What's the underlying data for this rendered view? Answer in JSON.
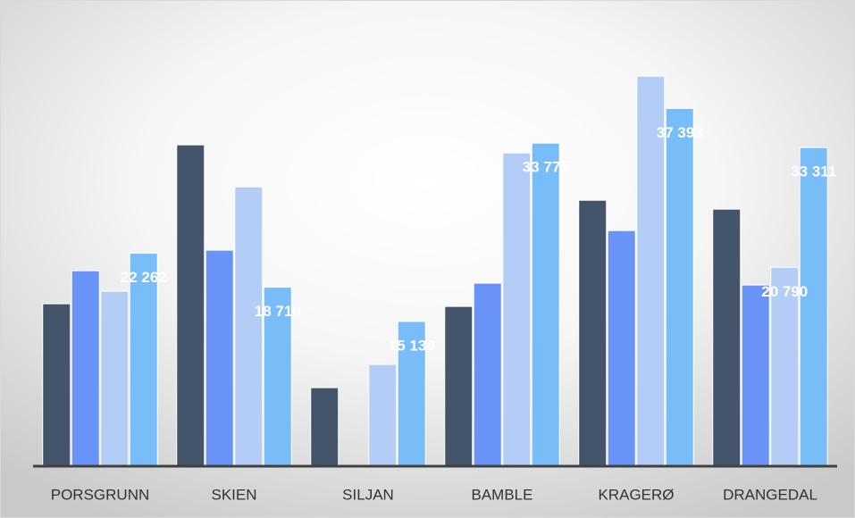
{
  "chart_data": {
    "type": "bar",
    "categories": [
      "PORSGRUNN",
      "SKIEN",
      "SILJAN",
      "BAMBLE",
      "KRAGERØ",
      "DRANGEDAL"
    ],
    "series": [
      {
        "color": "#44546a",
        "values": [
          16980,
          33590,
          8210,
          16700,
          27800,
          26870
        ],
        "value_labels": [
          null,
          null,
          null,
          null,
          null,
          null
        ]
      },
      {
        "color": "#6a93f8",
        "values": [
          20430,
          22580,
          0,
          19130,
          24630,
          18940
        ],
        "value_labels": [
          null,
          null,
          null,
          null,
          null,
          null
        ]
      },
      {
        "color": "#b4cdf7",
        "values": [
          18290,
          29200,
          10640,
          32750,
          40770,
          20790
        ],
        "value_labels": [
          null,
          null,
          null,
          null,
          null,
          "20 790"
        ]
      },
      {
        "color": "#78bdf8",
        "values": [
          22262,
          18710,
          15130,
          33775,
          37393,
          33311
        ],
        "value_labels": [
          "22 262",
          "18 710",
          "15 130",
          "33 775",
          "37 393",
          "33 311"
        ]
      }
    ],
    "ylim": [
      0,
      45000
    ],
    "grid": false
  }
}
